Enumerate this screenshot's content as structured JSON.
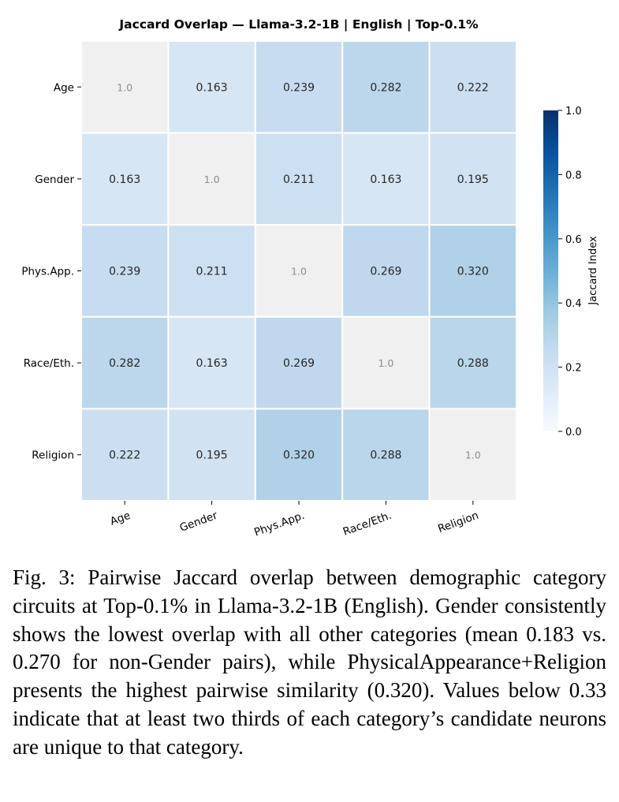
{
  "chart_data": {
    "type": "heatmap",
    "title": "Jaccard Overlap — Llama-3.2-1B | English | Top-0.1%",
    "row_labels": [
      "Age",
      "Gender",
      "Phys.App.",
      "Race/Eth.",
      "Religion"
    ],
    "col_labels": [
      "Age",
      "Gender",
      "Phys.App.",
      "Race/Eth.",
      "Religion"
    ],
    "values": [
      [
        1.0,
        0.163,
        0.239,
        0.282,
        0.222
      ],
      [
        0.163,
        1.0,
        0.211,
        0.163,
        0.195
      ],
      [
        0.239,
        0.211,
        1.0,
        0.269,
        0.32
      ],
      [
        0.282,
        0.163,
        0.269,
        1.0,
        0.288
      ],
      [
        0.222,
        0.195,
        0.32,
        0.288,
        1.0
      ]
    ],
    "cell_labels": [
      [
        "1.0",
        "0.163",
        "0.239",
        "0.282",
        "0.222"
      ],
      [
        "0.163",
        "1.0",
        "0.211",
        "0.163",
        "0.195"
      ],
      [
        "0.239",
        "0.211",
        "1.0",
        "0.269",
        "0.320"
      ],
      [
        "0.282",
        "0.163",
        "0.269",
        "1.0",
        "0.288"
      ],
      [
        "0.222",
        "0.195",
        "0.320",
        "0.288",
        "1.0"
      ]
    ],
    "diagonal_color": "#f0f0f0",
    "colormap": "Blues",
    "colorbar": {
      "label": "Jaccard Index",
      "range": [
        0.0,
        1.0
      ],
      "ticks": [
        "0.0",
        "0.2",
        "0.4",
        "0.6",
        "0.8",
        "1.0"
      ],
      "tick_values": [
        0.0,
        0.2,
        0.4,
        0.6,
        0.8,
        1.0
      ]
    }
  },
  "caption": {
    "prefix": "Fig. 3:",
    "text": "Pairwise Jaccard overlap between demographic category circuits at Top-0.1% in Llama-3.2-1B (English). Gender consistently shows the lowest overlap with all other categories (mean 0.183 vs. 0.270 for non-Gender pairs), while PhysicalAppearance+Religion presents the highest pairwise similarity (0.320). Values below 0.33 indicate that at least two thirds of each category’s candidate neurons are unique to that category."
  }
}
